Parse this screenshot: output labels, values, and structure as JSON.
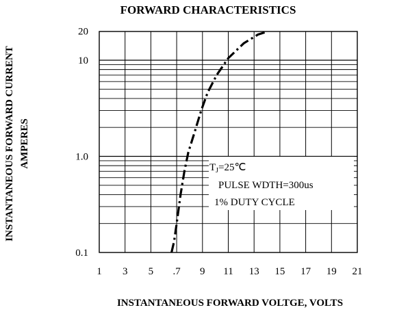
{
  "chart_data": {
    "type": "line",
    "title": "FORWARD CHARACTERISTICS",
    "xlabel": "INSTANTANEOUS FORWARD VOLTGE, VOLTS",
    "ylabel": "INSTANTANEOUS FORWARD CURRENT",
    "ylabel_line2": "AMPERES",
    "x_scale": "linear",
    "y_scale": "log",
    "xlim": [
      1,
      21
    ],
    "ylim": [
      0.1,
      20
    ],
    "x_tick_labels": [
      "1",
      "3",
      "5",
      ".7",
      "9",
      "11",
      "13",
      "15",
      "17",
      "19",
      "21"
    ],
    "y_tick_labels": [
      {
        "value": 0.1,
        "label": "0.1"
      },
      {
        "value": 1.0,
        "label": "1.0"
      },
      {
        "value": 10,
        "label": "10"
      },
      {
        "value": 20,
        "label": "20"
      }
    ],
    "grid": true,
    "annotation": {
      "tj_prefix": "T",
      "tj_sub": "J",
      "tj_suffix": "=25℃",
      "line2": "PULSE WDTH=300us",
      "line3": "1% DUTY CYCLE"
    },
    "series": [
      {
        "style": "dash-dot",
        "color": "#000000",
        "points": [
          [
            6.6,
            0.1
          ],
          [
            6.8,
            0.13
          ],
          [
            7.0,
            0.2
          ],
          [
            7.3,
            0.4
          ],
          [
            7.6,
            0.7
          ],
          [
            7.9,
            1.1
          ],
          [
            8.4,
            1.8
          ],
          [
            8.9,
            3.0
          ],
          [
            9.4,
            4.6
          ],
          [
            10.1,
            7.0
          ],
          [
            11.0,
            10.5
          ],
          [
            12.2,
            15.0
          ],
          [
            13.3,
            18.5
          ],
          [
            14.0,
            19.8
          ]
        ]
      }
    ]
  }
}
